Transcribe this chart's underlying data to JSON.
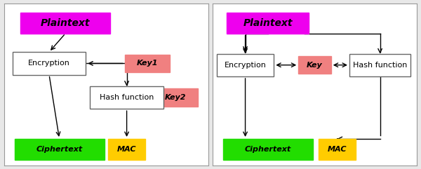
{
  "fig_width": 6.0,
  "fig_height": 2.41,
  "dpi": 100,
  "bg_color": "#e8e8e8",
  "panel_bg": "#ffffff",
  "colors": {
    "plaintext": "#ee00ee",
    "key": "#f08080",
    "ciphertext": "#22dd00",
    "mac": "#ffcc00",
    "box_bg": "#ffffff",
    "box_edge": "#666666"
  },
  "left": {
    "plaintext": "Plaintext",
    "encryption": "Encryption",
    "key1": "Key1",
    "key2": "Key2",
    "hash": "Hash function",
    "cipher": "Ciphertext",
    "mac": "MAC"
  },
  "right": {
    "plaintext": "Plaintext",
    "encryption": "Encryption",
    "key": "Key",
    "hash": "Hash function",
    "cipher": "Ciphertext",
    "mac": "MAC"
  }
}
